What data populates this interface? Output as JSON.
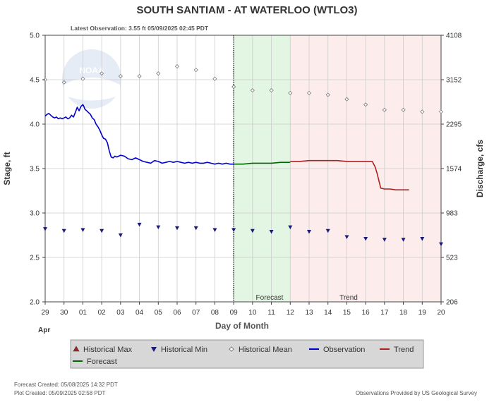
{
  "chart_data": {
    "type": "line",
    "title": "SOUTH SANTIAM - AT WATERLOO  (WTLO3)",
    "subtitle": "Latest Observation: 3.55 ft 05/09/2025 02:45 PDT",
    "xlabel": "Day of Month",
    "ylabel_left": "Stage, ft",
    "ylabel_right": "Discharge, cfs",
    "month_label": "Apr",
    "x_ticks": [
      "29",
      "30",
      "01",
      "02",
      "03",
      "04",
      "05",
      "06",
      "07",
      "08",
      "09",
      "10",
      "11",
      "12",
      "13",
      "14",
      "15",
      "16",
      "17",
      "18",
      "19",
      "20"
    ],
    "x_range": [
      0,
      21
    ],
    "ylim": [
      2.0,
      5.0
    ],
    "y_ticks": [
      "2.0",
      "2.5",
      "3.0",
      "3.5",
      "4.0",
      "4.5",
      "5.0"
    ],
    "y_tick_values": [
      2.0,
      2.5,
      3.0,
      3.5,
      4.0,
      4.5,
      5.0
    ],
    "y2_ticks": [
      "206",
      "523",
      "983",
      "1574",
      "2295",
      "3152",
      "4108"
    ],
    "grid": true,
    "now_day": 10,
    "forecast_range": [
      10,
      13
    ],
    "trend_range": [
      13,
      21
    ],
    "zone_labels": {
      "forecast": "Forecast",
      "trend": "Trend"
    },
    "series": [
      {
        "name": "Observation",
        "color": "#0000cc",
        "style": "line",
        "x": [
          0,
          0.1,
          0.2,
          0.3,
          0.4,
          0.5,
          0.6,
          0.7,
          0.8,
          0.9,
          1.0,
          1.1,
          1.2,
          1.3,
          1.4,
          1.5,
          1.6,
          1.7,
          1.8,
          1.9,
          2.0,
          2.05,
          2.1,
          2.2,
          2.3,
          2.4,
          2.5,
          2.6,
          2.7,
          2.8,
          2.9,
          3.0,
          3.1,
          3.2,
          3.3,
          3.4,
          3.5,
          3.6,
          3.7,
          3.8,
          3.9,
          4.0,
          4.2,
          4.4,
          4.6,
          4.8,
          5.0,
          5.2,
          5.4,
          5.6,
          5.8,
          6.0,
          6.2,
          6.4,
          6.6,
          6.8,
          7.0,
          7.2,
          7.4,
          7.6,
          7.8,
          8.0,
          8.2,
          8.4,
          8.6,
          8.8,
          9.0,
          9.2,
          9.4,
          9.6,
          9.8,
          10.0
        ],
        "values": [
          4.09,
          4.11,
          4.12,
          4.1,
          4.08,
          4.07,
          4.08,
          4.06,
          4.07,
          4.06,
          4.07,
          4.08,
          4.06,
          4.07,
          4.1,
          4.08,
          4.13,
          4.19,
          4.15,
          4.2,
          4.22,
          4.2,
          4.17,
          4.15,
          4.13,
          4.11,
          4.07,
          4.05,
          4.0,
          3.97,
          3.93,
          3.88,
          3.84,
          3.83,
          3.79,
          3.7,
          3.63,
          3.62,
          3.64,
          3.63,
          3.64,
          3.65,
          3.64,
          3.61,
          3.6,
          3.62,
          3.6,
          3.58,
          3.57,
          3.56,
          3.59,
          3.58,
          3.56,
          3.57,
          3.58,
          3.57,
          3.58,
          3.57,
          3.56,
          3.57,
          3.56,
          3.57,
          3.56,
          3.56,
          3.57,
          3.56,
          3.55,
          3.56,
          3.55,
          3.56,
          3.55,
          3.55
        ]
      },
      {
        "name": "Forecast",
        "color": "#006600",
        "style": "line",
        "x": [
          10,
          10.5,
          11,
          11.5,
          12,
          12.5,
          13
        ],
        "values": [
          3.55,
          3.55,
          3.56,
          3.56,
          3.56,
          3.57,
          3.57
        ]
      },
      {
        "name": "Trend",
        "color": "#aa2222",
        "style": "line",
        "x": [
          13,
          13.5,
          14,
          14.5,
          15,
          15.5,
          16,
          16.5,
          17,
          17.2,
          17.35,
          17.5,
          17.6,
          17.8,
          18,
          18.3,
          18.6,
          19.0,
          19.3
        ],
        "values": [
          3.58,
          3.58,
          3.59,
          3.59,
          3.59,
          3.59,
          3.58,
          3.58,
          3.58,
          3.58,
          3.58,
          3.52,
          3.45,
          3.28,
          3.27,
          3.27,
          3.26,
          3.26,
          3.26
        ]
      },
      {
        "name": "Historical Mean",
        "color": "#777777",
        "style": "diamond",
        "x": [
          0,
          1,
          2,
          3,
          4,
          5,
          6,
          7,
          8,
          9,
          10,
          11,
          12,
          13,
          14,
          15,
          16,
          17,
          18,
          19,
          20,
          21
        ],
        "values": [
          4.5,
          4.47,
          4.51,
          4.57,
          4.54,
          4.54,
          4.57,
          4.65,
          4.61,
          4.51,
          4.42,
          4.38,
          4.38,
          4.35,
          4.35,
          4.33,
          4.28,
          4.22,
          4.16,
          4.16,
          4.14,
          4.14
        ]
      },
      {
        "name": "Historical Min",
        "color": "#1a1a7a",
        "style": "triangle-down",
        "x": [
          0,
          1,
          2,
          3,
          4,
          5,
          6,
          7,
          8,
          9,
          10,
          11,
          12,
          13,
          14,
          15,
          16,
          17,
          18,
          19,
          20,
          21
        ],
        "values": [
          2.82,
          2.8,
          2.81,
          2.8,
          2.75,
          2.87,
          2.84,
          2.83,
          2.83,
          2.81,
          2.81,
          2.8,
          2.79,
          2.84,
          2.79,
          2.8,
          2.73,
          2.71,
          2.7,
          2.7,
          2.71,
          2.65
        ]
      },
      {
        "name": "Historical Max",
        "color": "#aa2222",
        "style": "triangle-up",
        "x": [],
        "values": []
      }
    ],
    "legend": [
      {
        "label": "Historical Max",
        "color": "#aa2222",
        "marker": "triangle-up"
      },
      {
        "label": "Historical Min",
        "color": "#1a1a7a",
        "marker": "triangle-down"
      },
      {
        "label": "Historical Mean",
        "color": "#777777",
        "marker": "diamond"
      },
      {
        "label": "Observation",
        "color": "#0000cc",
        "marker": "line"
      },
      {
        "label": "Trend",
        "color": "#aa2222",
        "marker": "line"
      },
      {
        "label": "Forecast",
        "color": "#006600",
        "marker": "line"
      }
    ]
  },
  "footer": {
    "forecast_created": "Forecast Created: 05/08/2025 14:32 PDT",
    "plot_created": "Plot Created: 05/09/2025 02:58 PDT",
    "credit": "Observations Provided by US Geological Survey"
  },
  "logo": {
    "text": "NOAA"
  },
  "colors": {
    "forecast_zone": "#e3f5e3",
    "trend_zone": "#fdecec",
    "grid": "#cccccc",
    "legend_bg": "#d7d7d7"
  }
}
